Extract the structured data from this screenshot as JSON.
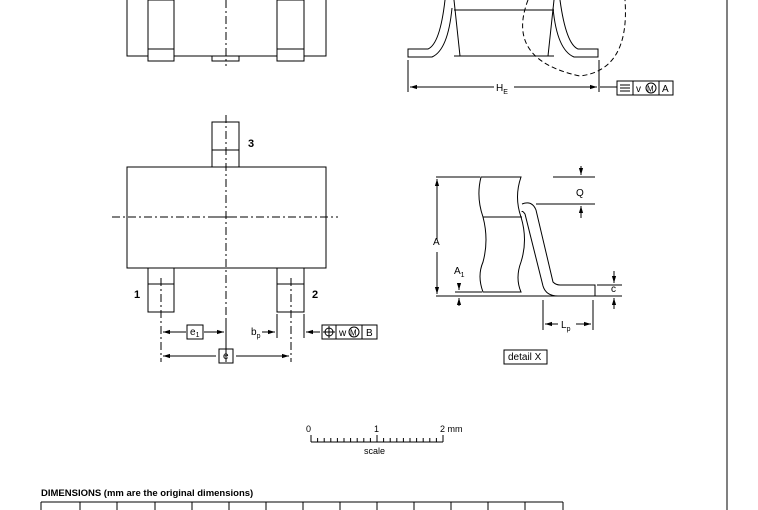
{
  "labels": {
    "he_main": "H",
    "he_sub": "E",
    "pin1": "1",
    "pin2": "2",
    "pin3": "3",
    "e1_main": "e",
    "e1_sub": "1",
    "bp_main": "b",
    "bp_sub": "p",
    "e": "e",
    "a": "A",
    "a1_main": "A",
    "a1_sub": "1",
    "q": "Q",
    "c": "c",
    "lp_main": "L",
    "lp_sub": "p",
    "detail": "detail X"
  },
  "tolerance_top": {
    "v": "v",
    "m": "M",
    "datum": "A"
  },
  "tolerance_bottom": {
    "w": "w",
    "m": "M",
    "datum": "B"
  },
  "scale": {
    "zero": "0",
    "one": "1",
    "two": "2 mm",
    "label": "scale"
  },
  "dimensions_title": "DIMENSIONS (mm are the original dimensions)"
}
